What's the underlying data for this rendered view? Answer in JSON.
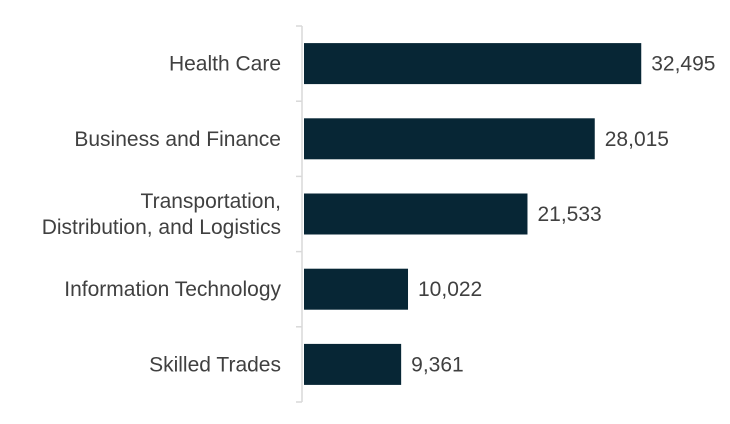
{
  "chart_data": {
    "type": "bar",
    "orientation": "horizontal",
    "title": "",
    "xlabel": "",
    "ylabel": "",
    "categories": [
      "Health Care",
      "Business and Finance",
      "Transportation, Distribution, and Logistics",
      "Information Technology",
      "Skilled Trades"
    ],
    "category_label_lines": [
      [
        "Health Care"
      ],
      [
        "Business and Finance"
      ],
      [
        "Transportation,",
        "Distribution, and Logistics"
      ],
      [
        "Information Technology"
      ],
      [
        "Skilled Trades"
      ]
    ],
    "values": [
      32495,
      28015,
      21533,
      10022,
      9361
    ],
    "value_labels": [
      "32,495",
      "28,015",
      "21,533",
      "10,022",
      "9,361"
    ],
    "xlim": [
      0,
      37000
    ],
    "grid": false,
    "legend": "none",
    "bar_color": "#072635",
    "text_color": "#404040",
    "axis_color": "#d9d9d9"
  }
}
